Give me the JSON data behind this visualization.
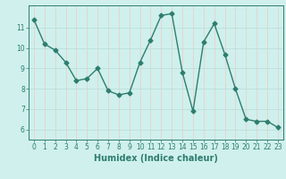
{
  "x": [
    0,
    1,
    2,
    3,
    4,
    5,
    6,
    7,
    8,
    9,
    10,
    11,
    12,
    13,
    14,
    15,
    16,
    17,
    18,
    19,
    20,
    21,
    22,
    23
  ],
  "y": [
    11.4,
    10.2,
    9.9,
    9.3,
    8.4,
    8.5,
    9.0,
    7.9,
    7.7,
    7.8,
    9.3,
    10.4,
    11.6,
    11.7,
    8.8,
    6.9,
    10.3,
    11.2,
    9.7,
    8.0,
    6.5,
    6.4,
    6.4,
    6.1
  ],
  "line_color": "#2e7d6e",
  "marker": "D",
  "marker_size": 2.5,
  "bg_color": "#cff0ec",
  "grid_color_v": "#f0c8c8",
  "grid_color_h": "#b8ddd8",
  "axis_color": "#2e7d6e",
  "xlabel": "Humidex (Indice chaleur)",
  "xlim": [
    -0.5,
    23.5
  ],
  "ylim": [
    5.5,
    12.1
  ],
  "yticks": [
    6,
    7,
    8,
    9,
    10,
    11
  ],
  "xticks": [
    0,
    1,
    2,
    3,
    4,
    5,
    6,
    7,
    8,
    9,
    10,
    11,
    12,
    13,
    14,
    15,
    16,
    17,
    18,
    19,
    20,
    21,
    22,
    23
  ],
  "tick_fontsize": 5.5,
  "xlabel_fontsize": 7,
  "linewidth": 1.0
}
